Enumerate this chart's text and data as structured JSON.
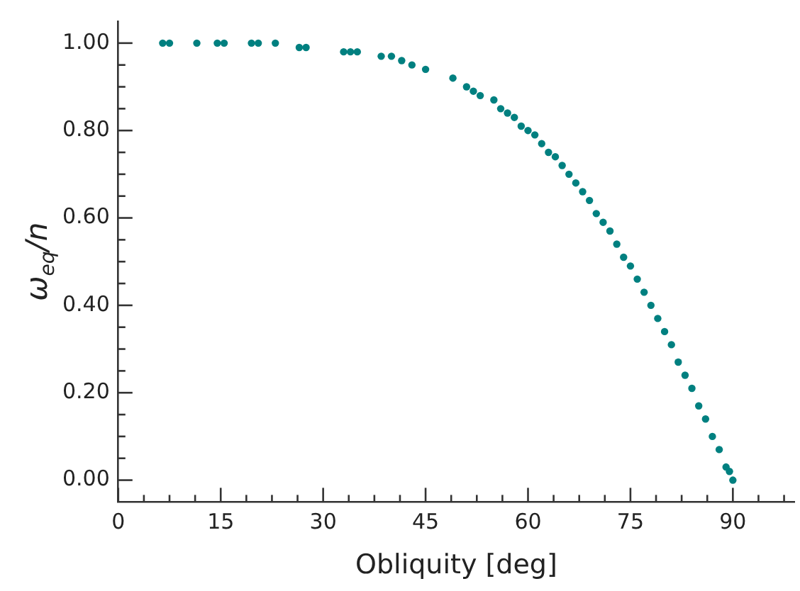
{
  "chart_data": {
    "type": "scatter",
    "xlabel": "Obliquity [deg]",
    "ylabel": "ω$_{eq}$/n",
    "xlim": [
      0,
      99
    ],
    "ylim": [
      -0.05,
      1.05
    ],
    "xticks": [
      0,
      {
        "value": 3.75,
        "label": null
      },
      {
        "value": 7.5,
        "label": null
      },
      {
        "value": 11.25,
        "label": null
      },
      15,
      {
        "value": 18.75,
        "label": null
      },
      {
        "value": 22.5,
        "label": null
      },
      {
        "value": 26.25,
        "label": null
      },
      30,
      {
        "value": 33.75,
        "label": null
      },
      {
        "value": 37.5,
        "label": null
      },
      {
        "value": 41.25,
        "label": null
      },
      45,
      {
        "value": 48.75,
        "label": null
      },
      {
        "value": 52.5,
        "label": null
      },
      {
        "value": 56.25,
        "label": null
      },
      60,
      {
        "value": 63.75,
        "label": null
      },
      {
        "value": 67.5,
        "label": null
      },
      {
        "value": 71.25,
        "label": null
      },
      75,
      {
        "value": 78.75,
        "label": null
      },
      {
        "value": 82.5,
        "label": null
      },
      {
        "value": 86.25,
        "label": null
      },
      90,
      {
        "value": 93.75,
        "label": null
      },
      {
        "value": 97.5,
        "label": null
      }
    ],
    "yticks": [
      {
        "value": 0,
        "label": "0.00"
      },
      {
        "value": 0.05,
        "label": null
      },
      {
        "value": 0.1,
        "label": null
      },
      {
        "value": 0.15,
        "label": null
      },
      {
        "value": 0.2,
        "label": "0.20"
      },
      {
        "value": 0.25,
        "label": null
      },
      {
        "value": 0.3,
        "label": null
      },
      {
        "value": 0.35,
        "label": null
      },
      {
        "value": 0.4,
        "label": "0.40"
      },
      {
        "value": 0.45,
        "label": null
      },
      {
        "value": 0.5,
        "label": null
      },
      {
        "value": 0.55,
        "label": null
      },
      {
        "value": 0.6,
        "label": "0.60"
      },
      {
        "value": 0.65,
        "label": null
      },
      {
        "value": 0.7,
        "label": null
      },
      {
        "value": 0.75,
        "label": null
      },
      {
        "value": 0.8,
        "label": "0.80"
      },
      {
        "value": 0.85,
        "label": null
      },
      {
        "value": 0.9,
        "label": null
      },
      {
        "value": 0.95,
        "label": null
      },
      {
        "value": 1,
        "label": "1.00"
      }
    ],
    "grid": false,
    "legend": false,
    "marker": "circle",
    "series": [
      {
        "color": "#008080",
        "x": [
          6.5,
          7.5,
          11.5,
          14.5,
          15.5,
          19.5,
          20.5,
          23,
          26.5,
          27.5,
          33,
          34,
          35,
          38.5,
          40,
          41.5,
          43,
          45,
          49,
          51,
          52,
          53,
          55,
          56,
          57,
          58,
          59,
          60,
          61,
          62,
          63,
          64,
          65,
          66,
          67,
          68,
          69,
          70,
          71,
          72,
          73,
          74,
          75,
          76,
          77,
          78,
          79,
          80,
          81,
          82,
          83,
          84,
          85,
          86,
          87,
          88,
          89,
          89.5,
          90
        ],
        "values": [
          1.0,
          1.0,
          1.0,
          1.0,
          1.0,
          1.0,
          1.0,
          1.0,
          0.99,
          0.99,
          0.98,
          0.98,
          0.98,
          0.97,
          0.97,
          0.96,
          0.95,
          0.94,
          0.92,
          0.9,
          0.89,
          0.88,
          0.87,
          0.85,
          0.84,
          0.83,
          0.81,
          0.8,
          0.79,
          0.77,
          0.75,
          0.74,
          0.72,
          0.7,
          0.68,
          0.66,
          0.64,
          0.61,
          0.59,
          0.57,
          0.54,
          0.51,
          0.49,
          0.46,
          0.43,
          0.4,
          0.37,
          0.34,
          0.31,
          0.27,
          0.24,
          0.21,
          0.17,
          0.14,
          0.1,
          0.07,
          0.03,
          0.02,
          0.0
        ]
      }
    ]
  }
}
